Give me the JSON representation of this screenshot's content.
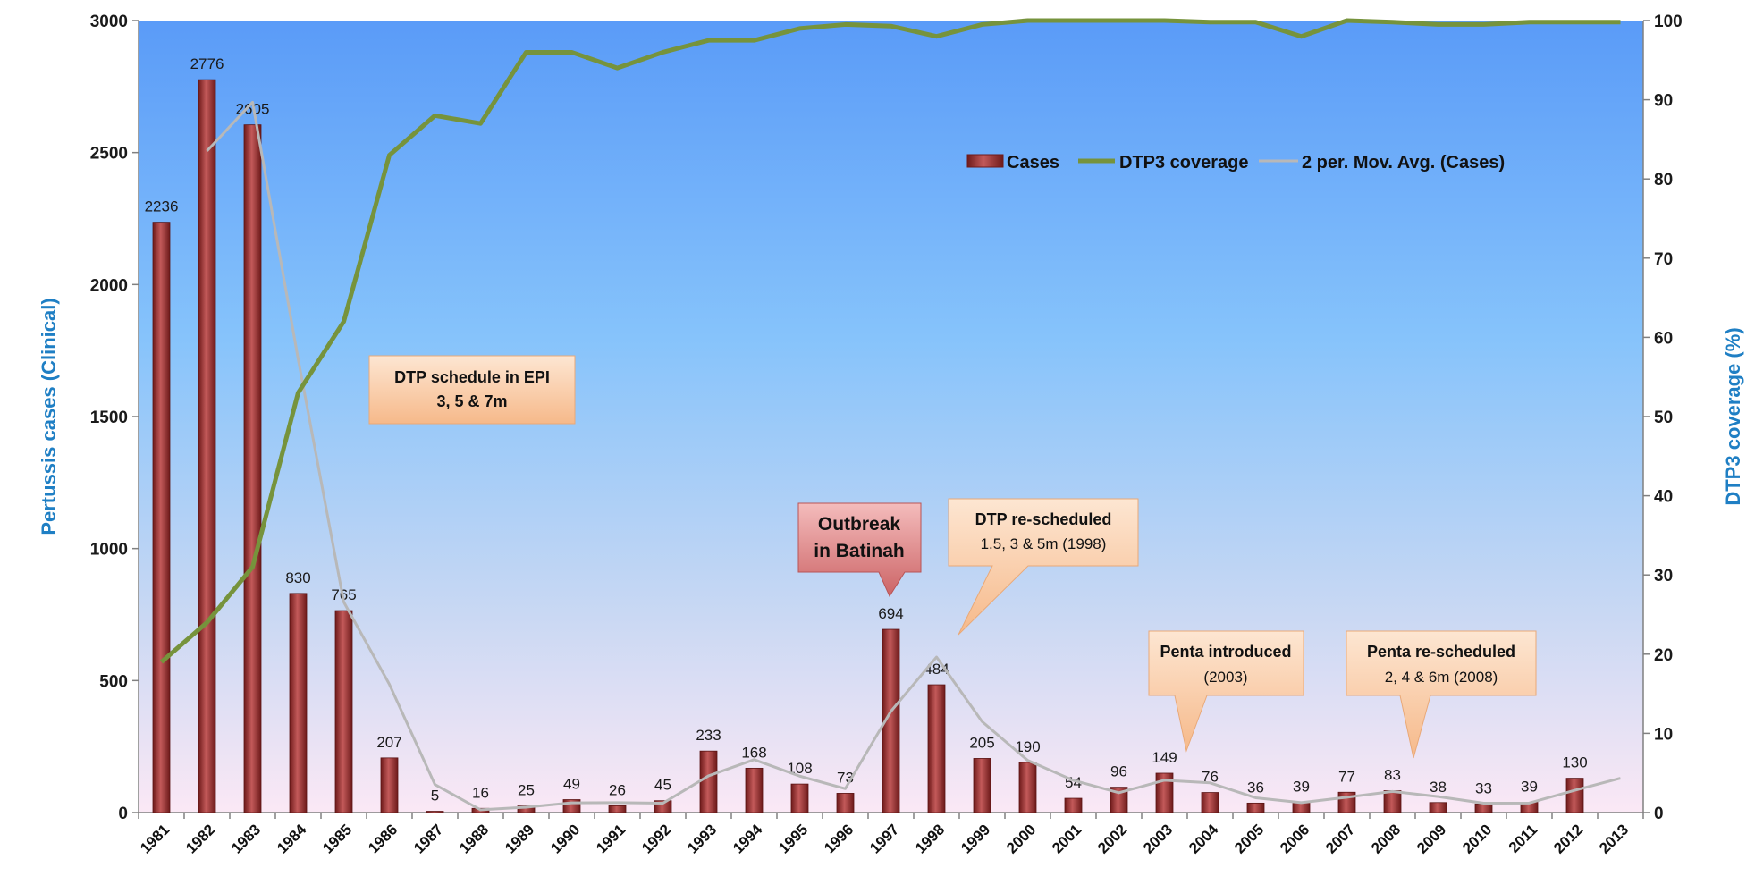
{
  "chart_data": {
    "type": "bar",
    "title": "",
    "ylabel": "Pertussis cases (Clinical)",
    "y2label": "DTP3 coverage (%)",
    "xlabel": "",
    "ylim": [
      0,
      3000
    ],
    "y2lim": [
      0,
      100
    ],
    "yticks": [
      "0",
      "500",
      "1000",
      "1500",
      "2000",
      "2500",
      "3000"
    ],
    "y2ticks": [
      "0",
      "10",
      "20",
      "30",
      "40",
      "50",
      "60",
      "70",
      "80",
      "90",
      "100"
    ],
    "categories": [
      "1981",
      "1982",
      "1983",
      "1984",
      "1985",
      "1986",
      "1987",
      "1988",
      "1989",
      "1990",
      "1991",
      "1992",
      "1993",
      "1994",
      "1995",
      "1996",
      "1997",
      "1998",
      "1999",
      "2000",
      "2001",
      "2002",
      "2003",
      "2004",
      "2005",
      "2006",
      "2007",
      "2008",
      "2009",
      "2010",
      "2011",
      "2012",
      "2013"
    ],
    "series": [
      {
        "name": "Cases",
        "type": "bar",
        "axis": "left",
        "color": "#8b2a2a",
        "values": [
          2236,
          2776,
          2605,
          830,
          765,
          207,
          5,
          16,
          25,
          49,
          26,
          45,
          233,
          168,
          108,
          73,
          694,
          484,
          205,
          190,
          54,
          96,
          149,
          76,
          36,
          39,
          77,
          83,
          38,
          33,
          39,
          130,
          null
        ],
        "labels": [
          "2236",
          "2776",
          "2605",
          "830",
          "765",
          "207",
          "5",
          "16",
          "25",
          "49",
          "26",
          "45",
          "233",
          "168",
          "108",
          "73",
          "694",
          "484",
          "205",
          "190",
          "54",
          "96",
          "149",
          "76",
          "36",
          "39",
          "77",
          "83",
          "38",
          "33",
          "39",
          "130",
          ""
        ]
      },
      {
        "name": "DTP3 coverage",
        "type": "line",
        "axis": "right",
        "color": "#76933c",
        "values": [
          19,
          24,
          31,
          53,
          62,
          83,
          88,
          87,
          96,
          96,
          94,
          96,
          97.5,
          97.5,
          99,
          99.5,
          99.3,
          98,
          99.5,
          100,
          100,
          100,
          100,
          99.8,
          99.8,
          98,
          100,
          99.8,
          99.5,
          99.5,
          99.8,
          99.8,
          99.8
        ]
      },
      {
        "name": "2 per. Mov. Avg. (Cases)",
        "type": "line",
        "axis": "left",
        "color": "#b8b8b8",
        "values": [
          null,
          2506,
          2690.5,
          1717.5,
          797.5,
          486,
          106,
          10.5,
          20.5,
          37,
          37.5,
          35.5,
          139,
          200.5,
          138,
          90.5,
          383.5,
          589,
          344.5,
          197.5,
          122,
          75,
          122.5,
          112.5,
          56,
          37.5,
          58,
          80,
          60.5,
          35.5,
          36,
          84.5,
          130
        ]
      }
    ],
    "legend": {
      "position": "top-right",
      "items": [
        "Cases",
        "DTP3 coverage",
        "2 per. Mov. Avg. (Cases)"
      ]
    },
    "annotations": [
      {
        "title": "DTP schedule in EPI",
        "subtitle": "3, 5 & 7m"
      },
      {
        "title": "Outbreak",
        "subtitle": "in Batinah"
      },
      {
        "title": "DTP re-scheduled",
        "subtitle": "1.5, 3 & 5m (1998)"
      },
      {
        "title": "Penta introduced",
        "subtitle": "(2003)"
      },
      {
        "title": "Penta re-scheduled",
        "subtitle": "2, 4 & 6m (2008)"
      }
    ],
    "colors": {
      "background_top": "#5a9bf8",
      "background_mid": "#86c3fb",
      "background_bottom": "#fbe8f5",
      "axis_title": "#1f7fc4",
      "callout_fill": "#f9c7a0",
      "outbreak_fill": "#d9797a"
    }
  }
}
